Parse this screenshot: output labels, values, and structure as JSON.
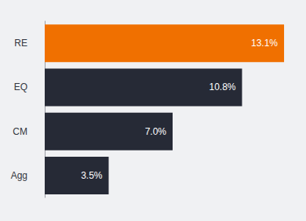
{
  "chart_data": {
    "type": "bar",
    "orientation": "horizontal",
    "categories": [
      "RE",
      "EQ",
      "CM",
      "Agg"
    ],
    "values": [
      13.1,
      10.8,
      7.0,
      3.5
    ],
    "value_labels": [
      "13.1%",
      "10.8%",
      "7.0%",
      "3.5%"
    ],
    "colors": [
      "#f07000",
      "#262a36",
      "#262a36",
      "#262a36"
    ],
    "xlim": [
      0,
      14
    ],
    "data_labels": true,
    "tick_labels": "y",
    "grid": false
  }
}
